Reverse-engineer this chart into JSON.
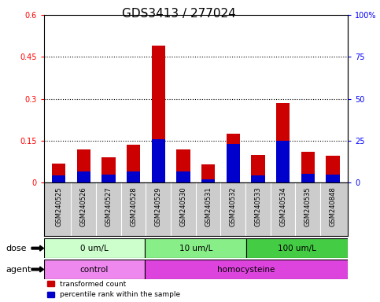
{
  "title": "GDS3413 / 277024",
  "samples": [
    "GSM240525",
    "GSM240526",
    "GSM240527",
    "GSM240528",
    "GSM240529",
    "GSM240530",
    "GSM240531",
    "GSM240532",
    "GSM240533",
    "GSM240534",
    "GSM240535",
    "GSM240848"
  ],
  "transformed_count": [
    0.068,
    0.12,
    0.09,
    0.135,
    0.49,
    0.118,
    0.065,
    0.175,
    0.1,
    0.285,
    0.112,
    0.098
  ],
  "percentile_rank_left": [
    0.025,
    0.04,
    0.03,
    0.04,
    0.155,
    0.04,
    0.012,
    0.14,
    0.025,
    0.15,
    0.032,
    0.03
  ],
  "bar_color_red": "#cc0000",
  "bar_color_blue": "#0000cc",
  "ylim_left": [
    0,
    0.6
  ],
  "ylim_right": [
    0,
    100
  ],
  "yticks_left": [
    0,
    0.15,
    0.3,
    0.45,
    0.6
  ],
  "yticks_right": [
    0,
    25,
    50,
    75,
    100
  ],
  "ytick_labels_left": [
    "0",
    "0.15",
    "0.3",
    "0.45",
    "0.6"
  ],
  "ytick_labels_right": [
    "0",
    "25",
    "50",
    "75",
    "100%"
  ],
  "dose_groups": [
    {
      "label": "0 um/L",
      "start": 0,
      "end": 4,
      "color": "#ccffcc"
    },
    {
      "label": "10 um/L",
      "start": 4,
      "end": 8,
      "color": "#88ee88"
    },
    {
      "label": "100 um/L",
      "start": 8,
      "end": 12,
      "color": "#44cc44"
    }
  ],
  "agent_groups": [
    {
      "label": "control",
      "start": 0,
      "end": 4,
      "color": "#ee88ee"
    },
    {
      "label": "homocysteine",
      "start": 4,
      "end": 12,
      "color": "#dd44dd"
    }
  ],
  "dose_label": "dose",
  "agent_label": "agent",
  "legend_red": "transformed count",
  "legend_blue": "percentile rank within the sample",
  "title_fontsize": 11,
  "tick_fontsize": 7,
  "label_fontsize": 8,
  "bar_width": 0.55
}
